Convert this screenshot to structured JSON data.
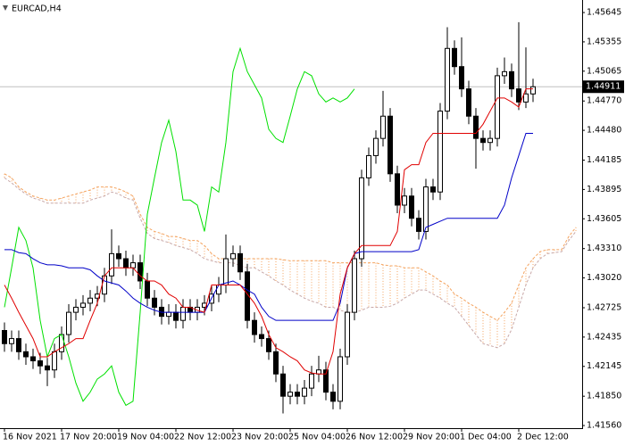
{
  "chart_data": {
    "type": "candlestick",
    "title": "EURCAD,H4",
    "categories": [
      "16 Nov 2021",
      null,
      null,
      null,
      null,
      null,
      null,
      null,
      "17 Nov 20:00",
      null,
      null,
      null,
      null,
      null,
      null,
      null,
      "19 Nov 04:00",
      null,
      null,
      null,
      null,
      null,
      null,
      null,
      "22 Nov 12:00",
      null,
      null,
      null,
      null,
      null,
      null,
      null,
      "23 Nov 20:00",
      null,
      null,
      null,
      null,
      null,
      null,
      null,
      "25 Nov 04:00",
      null,
      null,
      null,
      null,
      null,
      null,
      null,
      "26 Nov 12:00",
      null,
      null,
      null,
      null,
      null,
      null,
      null,
      "29 Nov 20:00",
      null,
      null,
      null,
      null,
      null,
      null,
      null,
      "1 Dec 04:00",
      null,
      null,
      null,
      null,
      null,
      null,
      null,
      "2 Dec 12:00",
      null,
      null,
      null,
      null,
      null,
      null,
      null,
      null
    ],
    "open": [
      1.425,
      1.4237,
      1.4242,
      1.4229,
      1.4224,
      1.422,
      1.4215,
      1.4211,
      1.4229,
      1.4246,
      1.4268,
      1.4273,
      1.4277,
      1.4282,
      1.4286,
      1.4304,
      1.4326,
      1.4321,
      1.4312,
      1.4317,
      1.4299,
      1.4282,
      1.4273,
      1.4264,
      1.4268,
      1.426,
      1.4273,
      1.4268,
      1.4273,
      1.4277,
      1.4286,
      1.4295,
      1.4321,
      1.4326,
      1.4308,
      1.426,
      1.4246,
      1.4242,
      1.4229,
      1.4207,
      1.4185,
      1.4189,
      1.4185,
      1.4193,
      1.4207,
      1.4211,
      1.4189,
      1.418,
      1.4224,
      1.4268,
      1.4321,
      1.4401,
      1.4423,
      1.444,
      1.4462,
      1.4405,
      1.4374,
      1.4383,
      1.4361,
      1.4348,
      1.4392,
      1.4387,
      1.4467,
      1.4529,
      1.4511,
      1.4489,
      1.4462,
      1.444,
      1.4436,
      1.444,
      1.4502,
      1.4506,
      1.4489,
      1.4476,
      1.4484,
      null,
      null,
      null,
      null,
      null,
      null
    ],
    "high": [
      1.4258,
      1.425,
      1.425,
      1.4237,
      1.4232,
      1.4228,
      1.4223,
      1.4237,
      1.4254,
      1.4276,
      1.4281,
      1.4285,
      1.429,
      1.4294,
      1.4312,
      1.435,
      1.4334,
      1.4329,
      1.4325,
      1.4325,
      1.4307,
      1.429,
      1.4281,
      1.4276,
      1.4276,
      1.4281,
      1.4281,
      1.4281,
      1.4285,
      1.4294,
      1.4303,
      1.4345,
      1.4334,
      1.4334,
      1.4316,
      1.4268,
      1.4254,
      1.425,
      1.4237,
      1.4215,
      1.4197,
      1.4197,
      1.4201,
      1.4215,
      1.4225,
      1.4219,
      1.4197,
      1.4232,
      1.4276,
      1.4329,
      1.4409,
      1.4431,
      1.4448,
      1.4487,
      1.447,
      1.4413,
      1.4391,
      1.4391,
      1.4369,
      1.44,
      1.44,
      1.4475,
      1.455,
      1.4537,
      1.454,
      1.4497,
      1.447,
      1.4448,
      1.4448,
      1.451,
      1.452,
      1.4514,
      1.4555,
      1.453,
      1.4499,
      null,
      null,
      null,
      null,
      null,
      null
    ],
    "low": [
      1.4229,
      1.4229,
      1.4221,
      1.4216,
      1.4212,
      1.4207,
      1.4195,
      1.4203,
      1.4221,
      1.4238,
      1.426,
      1.4265,
      1.4269,
      1.4274,
      1.4278,
      1.4296,
      1.4313,
      1.4304,
      1.4304,
      1.4291,
      1.4274,
      1.4265,
      1.4256,
      1.4256,
      1.4252,
      1.4252,
      1.426,
      1.426,
      1.4265,
      1.4269,
      1.4278,
      1.4287,
      1.4313,
      1.43,
      1.4252,
      1.4238,
      1.4234,
      1.4221,
      1.4199,
      1.4168,
      1.4177,
      1.4177,
      1.4177,
      1.4185,
      1.4199,
      1.4181,
      1.4172,
      1.4172,
      1.4216,
      1.426,
      1.4313,
      1.4393,
      1.4415,
      1.4432,
      1.4397,
      1.4366,
      1.4366,
      1.4353,
      1.434,
      1.434,
      1.4379,
      1.4379,
      1.4459,
      1.4503,
      1.4481,
      1.4454,
      1.441,
      1.4428,
      1.4428,
      1.4432,
      1.4494,
      1.4481,
      1.4468,
      1.447,
      1.4476,
      null,
      null,
      null,
      null,
      null,
      null
    ],
    "close": [
      1.4237,
      1.4242,
      1.4229,
      1.4224,
      1.422,
      1.4215,
      1.4211,
      1.4229,
      1.4246,
      1.4268,
      1.4273,
      1.4277,
      1.4282,
      1.4286,
      1.4304,
      1.4326,
      1.4321,
      1.4312,
      1.4317,
      1.4299,
      1.4282,
      1.4273,
      1.4264,
      1.4268,
      1.426,
      1.4273,
      1.4268,
      1.4273,
      1.4277,
      1.4286,
      1.4295,
      1.4321,
      1.4326,
      1.4308,
      1.426,
      1.4246,
      1.4242,
      1.4229,
      1.4207,
      1.4185,
      1.4189,
      1.4185,
      1.4193,
      1.4207,
      1.4211,
      1.4189,
      1.418,
      1.4224,
      1.4268,
      1.4321,
      1.4401,
      1.4423,
      1.444,
      1.4462,
      1.4405,
      1.4374,
      1.4383,
      1.4361,
      1.4348,
      1.4392,
      1.4387,
      1.4467,
      1.4529,
      1.4511,
      1.4489,
      1.4462,
      1.444,
      1.4436,
      1.444,
      1.4502,
      1.4506,
      1.4489,
      1.4476,
      1.4484,
      1.44911,
      null,
      null,
      null,
      null,
      null,
      null
    ],
    "series": [
      {
        "color": "#f4a460",
        "dashed": true,
        "values": [
          1.4405,
          1.4401,
          1.4392,
          1.4387,
          1.4383,
          1.4381,
          1.4379,
          1.4379,
          1.4381,
          1.4383,
          1.4385,
          1.4387,
          1.4389,
          1.4392,
          1.4392,
          1.4392,
          1.439,
          1.4387,
          1.4383,
          1.4365,
          1.4352,
          1.4348,
          1.4346,
          1.4343,
          1.4343,
          1.4341,
          1.4339,
          1.4339,
          1.4334,
          1.4326,
          1.4321,
          1.4321,
          1.4321,
          1.4321,
          1.4321,
          1.4321,
          1.4321,
          1.4321,
          1.4321,
          1.432,
          1.4319,
          1.4319,
          1.4319,
          1.4319,
          1.4319,
          1.4319,
          1.4317,
          1.4317,
          1.4317,
          1.4317,
          1.4317,
          1.4317,
          1.4317,
          1.4315,
          1.4314,
          1.4314,
          1.4312,
          1.4312,
          1.4312,
          1.4308,
          1.4304,
          1.4299,
          1.4295,
          1.4286,
          1.4282,
          1.4277,
          1.4273,
          1.4268,
          1.4264,
          1.426,
          1.4268,
          1.4277,
          1.4295,
          1.4312,
          1.4321,
          1.4328,
          1.433,
          1.433,
          1.433,
          1.4343,
          1.4352
        ]
      },
      {
        "color": "#c8a8a8",
        "dashed": true,
        "values": [
          1.4401,
          1.4396,
          1.439,
          1.4385,
          1.4381,
          1.4379,
          1.4376,
          1.4376,
          1.4376,
          1.4376,
          1.4376,
          1.4376,
          1.4379,
          1.4381,
          1.4383,
          1.4387,
          1.4385,
          1.4381,
          1.4379,
          1.4361,
          1.4346,
          1.4341,
          1.4339,
          1.4337,
          1.4334,
          1.4332,
          1.433,
          1.4326,
          1.4321,
          1.4319,
          1.4317,
          1.4317,
          1.4317,
          1.4314,
          1.4312,
          1.4312,
          1.4308,
          1.4304,
          1.4299,
          1.4295,
          1.429,
          1.4286,
          1.4282,
          1.4279,
          1.4277,
          1.4273,
          1.4273,
          1.427,
          1.4268,
          1.4268,
          1.427,
          1.4273,
          1.4273,
          1.4273,
          1.4274,
          1.4277,
          1.4282,
          1.4286,
          1.429,
          1.429,
          1.4286,
          1.4282,
          1.4277,
          1.4273,
          1.4264,
          1.4255,
          1.4246,
          1.4237,
          1.4235,
          1.4233,
          1.4237,
          1.4251,
          1.4273,
          1.4295,
          1.4312,
          1.4321,
          1.4326,
          1.4327,
          1.4328,
          1.4339,
          1.4348
        ]
      },
      {
        "color": "#00e000",
        "dashed": false,
        "values": [
          1.4273,
          1.4312,
          1.4352,
          1.4339,
          1.4312,
          1.426,
          1.4224,
          1.4242,
          1.4246,
          1.4224,
          1.4198,
          1.418,
          1.4189,
          1.4202,
          1.4207,
          1.4215,
          1.4189,
          1.4176,
          1.418,
          1.4268,
          1.4365,
          1.4401,
          1.4436,
          1.4458,
          1.4427,
          1.4379,
          1.4379,
          1.4374,
          1.4348,
          1.4392,
          1.4387,
          1.4436,
          1.4506,
          1.4529,
          1.4506,
          1.4493,
          1.448,
          1.4449,
          1.444,
          1.4436,
          1.4462,
          1.4489,
          1.4506,
          1.4502,
          1.4484,
          1.4476,
          1.448,
          1.4476,
          1.448,
          1.4489,
          null,
          null,
          null,
          null,
          null,
          null,
          null,
          null,
          null,
          null,
          null,
          null,
          null,
          null,
          null,
          null,
          null,
          null,
          null,
          null,
          null,
          null,
          null,
          null,
          null,
          null,
          null,
          null,
          null,
          null,
          null
        ]
      },
      {
        "color": "#0000c8",
        "dashed": false,
        "values": [
          1.433,
          1.433,
          1.4327,
          1.4326,
          1.4321,
          1.4317,
          1.4315,
          1.4315,
          1.4314,
          1.4312,
          1.4312,
          1.4312,
          1.431,
          1.4304,
          1.4299,
          1.4297,
          1.4295,
          1.4289,
          1.4282,
          1.4277,
          1.4273,
          1.427,
          1.4268,
          1.4268,
          1.4268,
          1.4268,
          1.4268,
          1.4268,
          1.4268,
          1.4282,
          1.4295,
          1.4297,
          1.4299,
          1.4295,
          1.429,
          1.4286,
          1.4273,
          1.4264,
          1.426,
          1.426,
          1.426,
          1.426,
          1.426,
          1.426,
          1.426,
          1.426,
          1.426,
          1.4277,
          1.4312,
          1.4326,
          1.4328,
          1.4328,
          1.4328,
          1.4328,
          1.4328,
          1.4328,
          1.4328,
          1.4328,
          1.433,
          1.4352,
          1.4355,
          1.4358,
          1.4361,
          1.4361,
          1.4361,
          1.4361,
          1.4361,
          1.4361,
          1.4361,
          1.4361,
          1.4374,
          1.4401,
          1.4423,
          1.4445,
          1.4445,
          null,
          null,
          null,
          null,
          null,
          null
        ]
      },
      {
        "color": "#e00000",
        "dashed": false,
        "values": [
          1.4295,
          1.4282,
          1.4268,
          1.4255,
          1.4242,
          1.4224,
          1.4224,
          1.4229,
          1.4233,
          1.4237,
          1.4242,
          1.4242,
          1.426,
          1.4277,
          1.4304,
          1.4312,
          1.4312,
          1.4312,
          1.4312,
          1.4304,
          1.4299,
          1.4299,
          1.4295,
          1.4286,
          1.4282,
          1.4273,
          1.4273,
          1.427,
          1.4268,
          1.4295,
          1.4295,
          1.4295,
          1.4295,
          1.4295,
          1.4286,
          1.4277,
          1.4264,
          1.4246,
          1.4233,
          1.4229,
          1.4224,
          1.422,
          1.4211,
          1.4208,
          1.4207,
          1.4207,
          1.4229,
          1.4286,
          1.4312,
          1.4326,
          1.4334,
          1.4334,
          1.4334,
          1.4334,
          1.4334,
          1.4348,
          1.4409,
          1.4414,
          1.4414,
          1.4436,
          1.4445,
          1.4445,
          1.4445,
          1.4445,
          1.4445,
          1.4445,
          1.4445,
          1.4454,
          1.4467,
          1.448,
          1.448,
          1.4476,
          1.4471,
          1.4489,
          1.4489,
          null,
          null,
          null,
          null,
          null,
          null
        ]
      }
    ],
    "current_price": 1.44911,
    "ylim": [
      1.41534,
      1.45769
    ],
    "yticks": [
      1.45645,
      1.45355,
      1.45065,
      {
        "value": 1.4477,
        "label": "1.44770"
      },
      {
        "value": 1.4448,
        "label": "1.44480"
      },
      1.44185,
      1.43895,
      1.43605,
      {
        "value": 1.4331,
        "label": "1.43310"
      },
      {
        "value": 1.4302,
        "label": "1.43020"
      },
      1.42725,
      1.42435,
      1.42145,
      {
        "value": 1.4185,
        "label": "1.41850"
      },
      {
        "value": 1.4156,
        "label": "1.41560"
      }
    ],
    "grid": false
  }
}
